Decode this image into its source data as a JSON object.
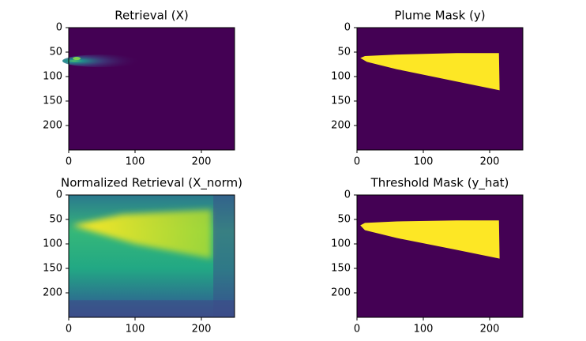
{
  "chart_data": [
    {
      "type": "image",
      "title": "Retrieval (X)",
      "xlim": [
        0,
        250
      ],
      "ylim": [
        250,
        0
      ],
      "xticks": [
        0,
        100,
        200
      ],
      "yticks": [
        0,
        50,
        100,
        150,
        200
      ]
    },
    {
      "type": "image",
      "title": "Plume Mask (y)",
      "xlim": [
        0,
        250
      ],
      "ylim": [
        250,
        0
      ],
      "xticks": [
        0,
        100,
        200
      ],
      "yticks": [
        0,
        50,
        100,
        150,
        200
      ]
    },
    {
      "type": "image",
      "title": "Normalized Retrieval (X_norm)",
      "xlim": [
        0,
        250
      ],
      "ylim": [
        250,
        0
      ],
      "xticks": [
        0,
        100,
        200
      ],
      "yticks": [
        0,
        50,
        100,
        150,
        200
      ]
    },
    {
      "type": "image",
      "title": "Threshold Mask (y_hat)",
      "xlim": [
        0,
        250
      ],
      "ylim": [
        250,
        0
      ],
      "xticks": [
        0,
        100,
        200
      ],
      "yticks": [
        0,
        50,
        100,
        150,
        200
      ]
    }
  ]
}
